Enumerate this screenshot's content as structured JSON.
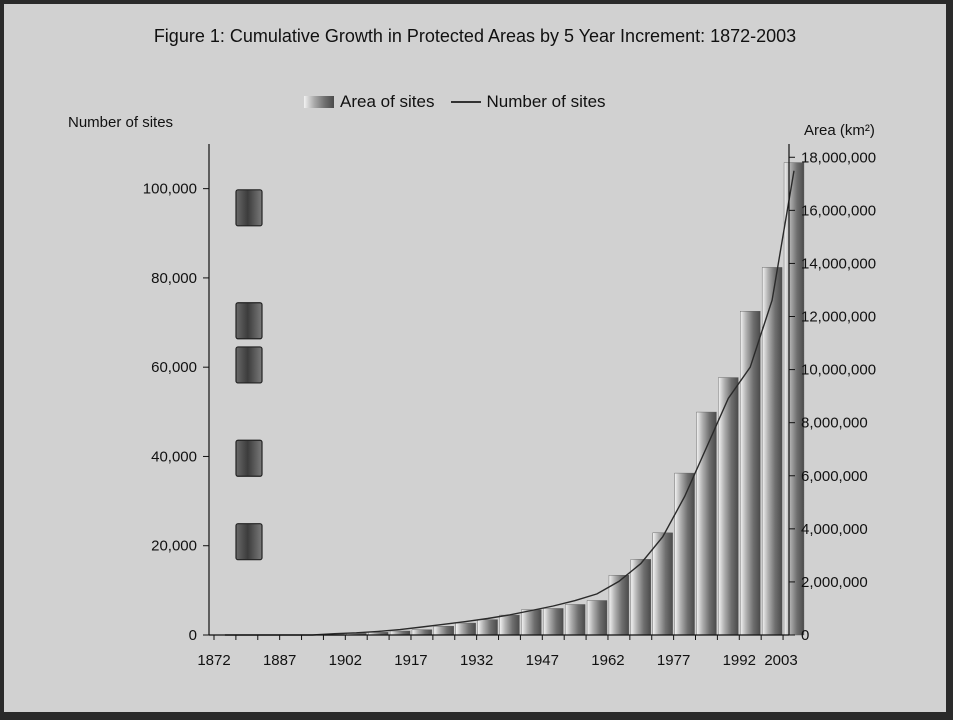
{
  "chart_data": {
    "type": "bar",
    "title": "Figure 1: Cumulative Growth in Protected Areas by 5 Year Increment: 1872-2003",
    "legend": {
      "bar_label": "Area of sites",
      "line_label": "Number of sites",
      "placement": "top-center"
    },
    "y_left_label": "Number of sites",
    "y_right_label": "Area (km²)",
    "y_left_range": [
      0,
      110000
    ],
    "y_right_range": [
      0,
      18500000
    ],
    "y_left_ticks": [
      "0",
      "20,000",
      "40,000",
      "60,000",
      "80,000",
      "100,000"
    ],
    "y_right_ticks": [
      "0",
      "2,000,000",
      "4,000,000",
      "6,000,000",
      "8,000,000",
      "10,000,000",
      "12,000,000",
      "14,000,000",
      "16,000,000",
      "18,000,000"
    ],
    "x_tick_labels": [
      "1872",
      "1887",
      "1902",
      "1917",
      "1932",
      "1947",
      "1962",
      "1977",
      "1992",
      "2003"
    ],
    "categories": [
      "1872",
      "1877",
      "1882",
      "1887",
      "1892",
      "1897",
      "1902",
      "1907",
      "1912",
      "1917",
      "1922",
      "1927",
      "1932",
      "1937",
      "1942",
      "1947",
      "1952",
      "1957",
      "1962",
      "1967",
      "1972",
      "1977",
      "1982",
      "1987",
      "1992",
      "1997",
      "2003"
    ],
    "series": [
      {
        "name": "Area of sites",
        "axis": "right",
        "values": [
          0,
          0,
          0,
          0,
          0,
          20000,
          60000,
          100000,
          150000,
          200000,
          330000,
          450000,
          580000,
          750000,
          950000,
          1000000,
          1150000,
          1300000,
          2250000,
          2850000,
          3850000,
          6100000,
          8400000,
          9700000,
          12200000,
          13850000,
          17800000
        ]
      },
      {
        "name": "Number of sites",
        "axis": "left",
        "values": [
          0,
          0,
          0,
          0,
          0,
          300,
          500,
          800,
          1200,
          1800,
          2400,
          3000,
          3700,
          4500,
          5500,
          6500,
          7700,
          9200,
          12000,
          16000,
          22000,
          31000,
          42000,
          53000,
          60000,
          75000,
          104000
        ]
      }
    ],
    "grid": false,
    "stray_marker_count": 5
  }
}
